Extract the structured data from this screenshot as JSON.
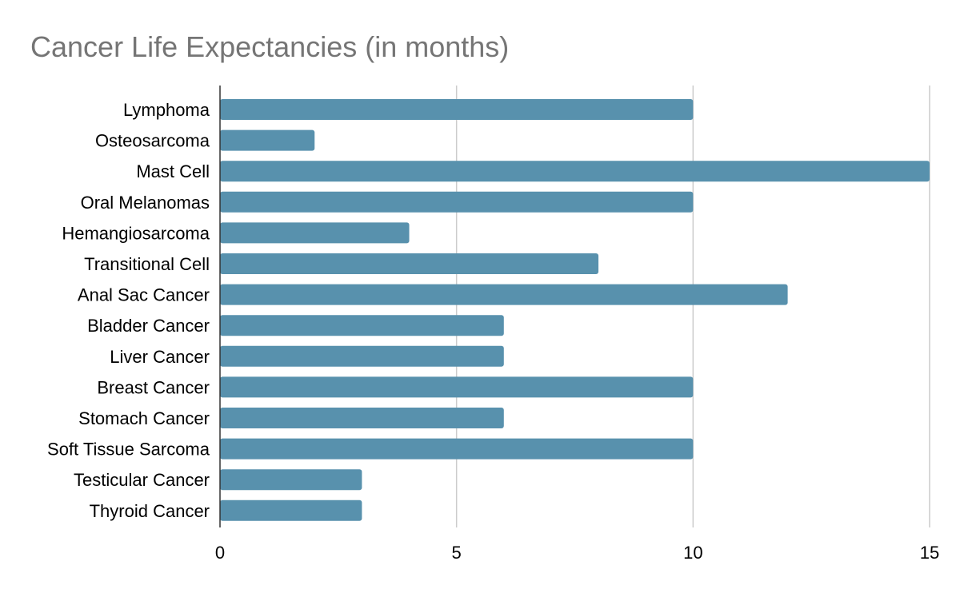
{
  "chart_data": {
    "type": "bar",
    "orientation": "horizontal",
    "title": "Cancer Life Expectancies (in months)",
    "xlabel": "",
    "ylabel": "",
    "categories": [
      "Lymphoma",
      "Osteosarcoma",
      "Mast Cell",
      "Oral Melanomas",
      "Hemangiosarcoma",
      "Transitional Cell",
      "Anal Sac Cancer",
      "Bladder Cancer",
      "Liver Cancer",
      "Breast Cancer",
      "Stomach Cancer",
      "Soft Tissue Sarcoma",
      "Testicular Cancer",
      "Thyroid Cancer"
    ],
    "values": [
      10,
      2,
      15,
      10,
      4,
      8,
      12,
      6,
      6,
      10,
      6,
      10,
      3,
      3
    ],
    "xlim": [
      0,
      15
    ],
    "xticks": [
      "0",
      "5",
      "10",
      "15"
    ],
    "grid": true,
    "legend": "none",
    "bar_color": "#5891ad",
    "grid_color": "#cccccc",
    "axis_color": "#333333"
  }
}
